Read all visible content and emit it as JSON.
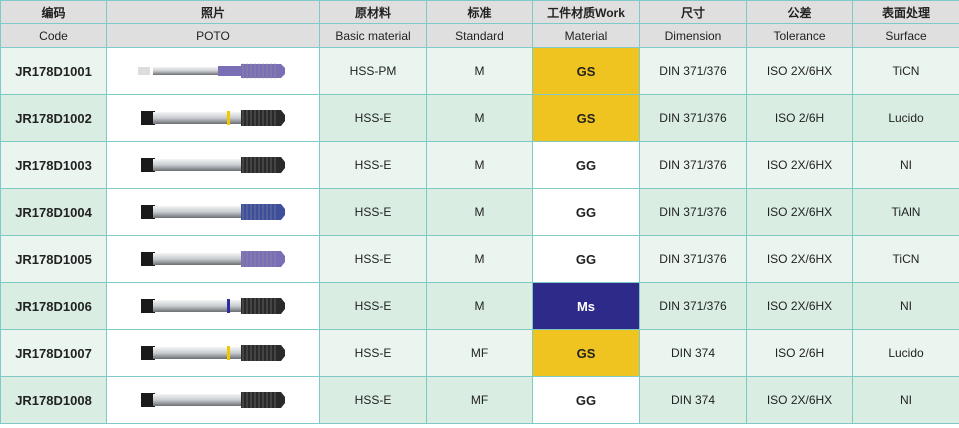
{
  "headers_cn": [
    "编码",
    "照片",
    "原材料",
    "标准",
    "工件材质Work",
    "尺寸",
    "公差",
    "表面处理"
  ],
  "headers_en": [
    "Code",
    "POTO",
    "Basic material",
    "Standard",
    "Material",
    "Dimension",
    "Tolerance",
    "Surface"
  ],
  "colors": {
    "GS": "#f0c420",
    "GG": "#ffffff",
    "Ms": "#2e2a8a"
  },
  "rows": [
    {
      "code": "JR178D1001",
      "material": "HSS-PM",
      "standard": "M",
      "work": "GS",
      "dimension": "DIN 371/376",
      "tolerance": "ISO 2X/6HX",
      "surface": "TiCN",
      "tap": "violet-spiral-point"
    },
    {
      "code": "JR178D1002",
      "material": "HSS-E",
      "standard": "M",
      "work": "GS",
      "dimension": "DIN 371/376",
      "tolerance": "ISO 2/6H",
      "surface": "Lucido",
      "tap": "yellow-ring"
    },
    {
      "code": "JR178D1003",
      "material": "HSS-E",
      "standard": "M",
      "work": "GG",
      "dimension": "DIN 371/376",
      "tolerance": "ISO 2X/6HX",
      "surface": "NI",
      "tap": "black"
    },
    {
      "code": "JR178D1004",
      "material": "HSS-E",
      "standard": "M",
      "work": "GG",
      "dimension": "DIN 371/376",
      "tolerance": "ISO 2X/6HX",
      "surface": "TiAlN",
      "tap": "blue"
    },
    {
      "code": "JR178D1005",
      "material": "HSS-E",
      "standard": "M",
      "work": "GG",
      "dimension": "DIN 371/376",
      "tolerance": "ISO 2X/6HX",
      "surface": "TiCN",
      "tap": "violet"
    },
    {
      "code": "JR178D1006",
      "material": "HSS-E",
      "standard": "M",
      "work": "Ms",
      "dimension": "DIN 371/376",
      "tolerance": "ISO 2X/6HX",
      "surface": "NI",
      "tap": "blue-ring"
    },
    {
      "code": "JR178D1007",
      "material": "HSS-E",
      "standard": "MF",
      "work": "GS",
      "dimension": "DIN 374",
      "tolerance": "ISO 2/6H",
      "surface": "Lucido",
      "tap": "yellow-ring"
    },
    {
      "code": "JR178D1008",
      "material": "HSS-E",
      "standard": "MF",
      "work": "GG",
      "dimension": "DIN 374",
      "tolerance": "ISO 2X/6HX",
      "surface": "NI",
      "tap": "black"
    }
  ]
}
